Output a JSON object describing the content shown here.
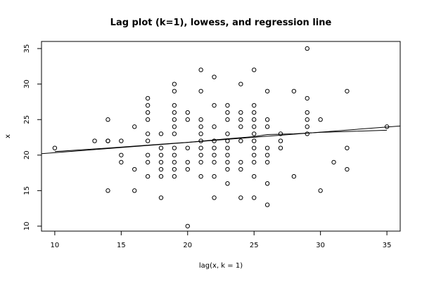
{
  "chart_data": {
    "type": "scatter",
    "title": "Lag plot (k=1), lowess, and regression line",
    "xlabel": "lag(x, k = 1)",
    "ylabel": "x",
    "xlim": [
      9,
      36
    ],
    "ylim": [
      9.3,
      36
    ],
    "x_ticks": [
      10,
      15,
      20,
      25,
      30,
      35
    ],
    "y_ticks": [
      10,
      15,
      20,
      25,
      30,
      35
    ],
    "grid": false,
    "legend": "none",
    "points": [
      [
        10,
        21
      ],
      [
        13,
        22
      ],
      [
        14,
        15
      ],
      [
        14,
        22
      ],
      [
        14,
        22
      ],
      [
        14,
        25
      ],
      [
        15,
        19
      ],
      [
        15,
        20
      ],
      [
        15,
        22
      ],
      [
        16,
        15
      ],
      [
        16,
        18
      ],
      [
        16,
        24
      ],
      [
        17,
        17
      ],
      [
        17,
        19
      ],
      [
        17,
        20
      ],
      [
        17,
        22
      ],
      [
        17,
        23
      ],
      [
        17,
        25
      ],
      [
        17,
        26
      ],
      [
        17,
        27
      ],
      [
        17,
        28
      ],
      [
        18,
        14
      ],
      [
        18,
        17
      ],
      [
        18,
        18
      ],
      [
        18,
        19
      ],
      [
        18,
        20
      ],
      [
        18,
        21
      ],
      [
        18,
        23
      ],
      [
        19,
        17
      ],
      [
        19,
        18
      ],
      [
        19,
        19
      ],
      [
        19,
        20
      ],
      [
        19,
        21
      ],
      [
        19,
        23
      ],
      [
        19,
        24
      ],
      [
        19,
        25
      ],
      [
        19,
        26
      ],
      [
        19,
        27
      ],
      [
        19,
        29
      ],
      [
        19,
        30
      ],
      [
        20,
        10
      ],
      [
        20,
        18
      ],
      [
        20,
        19
      ],
      [
        20,
        21
      ],
      [
        20,
        25
      ],
      [
        20,
        26
      ],
      [
        21,
        17
      ],
      [
        21,
        19
      ],
      [
        21,
        20
      ],
      [
        21,
        21
      ],
      [
        21,
        22
      ],
      [
        21,
        23
      ],
      [
        21,
        24
      ],
      [
        21,
        25
      ],
      [
        21,
        29
      ],
      [
        21,
        32
      ],
      [
        22,
        14
      ],
      [
        22,
        17
      ],
      [
        22,
        19
      ],
      [
        22,
        20
      ],
      [
        22,
        21
      ],
      [
        22,
        22
      ],
      [
        22,
        24
      ],
      [
        22,
        27
      ],
      [
        22,
        31
      ],
      [
        23,
        16
      ],
      [
        23,
        18
      ],
      [
        23,
        19
      ],
      [
        23,
        20
      ],
      [
        23,
        21
      ],
      [
        23,
        22
      ],
      [
        23,
        23
      ],
      [
        23,
        25
      ],
      [
        23,
        26
      ],
      [
        23,
        27
      ],
      [
        24,
        14
      ],
      [
        24,
        18
      ],
      [
        24,
        19
      ],
      [
        24,
        22
      ],
      [
        24,
        24
      ],
      [
        24,
        25
      ],
      [
        24,
        26
      ],
      [
        24,
        30
      ],
      [
        25,
        14
      ],
      [
        25,
        17
      ],
      [
        25,
        19
      ],
      [
        25,
        20
      ],
      [
        25,
        21
      ],
      [
        25,
        22
      ],
      [
        25,
        23
      ],
      [
        25,
        24
      ],
      [
        25,
        25
      ],
      [
        25,
        26
      ],
      [
        25,
        27
      ],
      [
        25,
        32
      ],
      [
        26,
        13
      ],
      [
        26,
        16
      ],
      [
        26,
        19
      ],
      [
        26,
        20
      ],
      [
        26,
        21
      ],
      [
        26,
        24
      ],
      [
        26,
        25
      ],
      [
        26,
        29
      ],
      [
        27,
        21
      ],
      [
        27,
        22
      ],
      [
        27,
        23
      ],
      [
        28,
        17
      ],
      [
        28,
        29
      ],
      [
        29,
        23
      ],
      [
        29,
        24
      ],
      [
        29,
        25
      ],
      [
        29,
        26
      ],
      [
        29,
        28
      ],
      [
        29,
        35
      ],
      [
        30,
        15
      ],
      [
        30,
        25
      ],
      [
        31,
        19
      ],
      [
        32,
        18
      ],
      [
        32,
        21
      ],
      [
        32,
        29
      ],
      [
        35,
        24
      ]
    ],
    "regression_line": [
      [
        9,
        20.2
      ],
      [
        36,
        24.1
      ]
    ],
    "lowess_line": [
      [
        10,
        20.5
      ],
      [
        14,
        21.0
      ],
      [
        17,
        21.4
      ],
      [
        20,
        21.8
      ],
      [
        23,
        22.3
      ],
      [
        25,
        22.6
      ],
      [
        26,
        22.9
      ],
      [
        28,
        23.0
      ],
      [
        30,
        23.2
      ],
      [
        35,
        23.5
      ]
    ]
  }
}
